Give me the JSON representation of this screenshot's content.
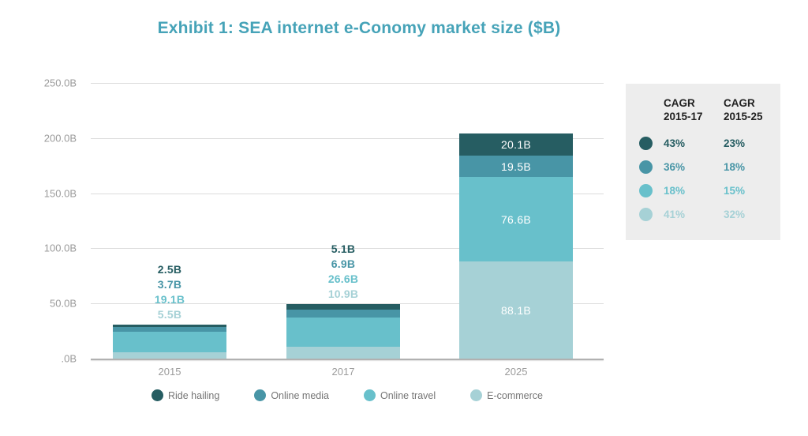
{
  "chart_data": {
    "type": "bar",
    "stacked": true,
    "title": "Exhibit 1: SEA internet e-Conomy market size ($B)",
    "xlabel": "",
    "ylabel": "",
    "ylim": [
      0,
      250
    ],
    "grid": true,
    "legend_position": "bottom",
    "categories": [
      "2015",
      "2017",
      "2025"
    ],
    "y_ticks": [
      "250.0B",
      "200.0B",
      "150.0B",
      "100.0B",
      "50.0B",
      ".0B"
    ],
    "series": [
      {
        "name": "Ride hailing",
        "color": "#265d62",
        "values": [
          2.5,
          5.1,
          20.1
        ]
      },
      {
        "name": "Online media",
        "color": "#4895a6",
        "values": [
          3.7,
          6.9,
          19.5
        ]
      },
      {
        "name": "Online travel",
        "color": "#68c0cb",
        "values": [
          19.1,
          26.6,
          76.6
        ]
      },
      {
        "name": "E-commerce",
        "color": "#a6d1d6",
        "values": [
          5.5,
          10.9,
          88.1
        ]
      }
    ],
    "value_label_suffix": "B",
    "outside_label_categories": [
      "2015",
      "2017"
    ],
    "inside_label_categories": [
      "2025"
    ]
  },
  "cagr_table": {
    "headers": [
      {
        "line1": "CAGR",
        "line2": "2015-17"
      },
      {
        "line1": "CAGR",
        "line2": "2015-25"
      }
    ],
    "rows": [
      {
        "series": "Ride hailing",
        "color": "#265d62",
        "cagr_2015_17": "43%",
        "cagr_2015_25": "23%"
      },
      {
        "series": "Online media",
        "color": "#4895a6",
        "cagr_2015_17": "36%",
        "cagr_2015_25": "18%"
      },
      {
        "series": "Online travel",
        "color": "#68c0cb",
        "cagr_2015_17": "18%",
        "cagr_2015_25": "15%"
      },
      {
        "series": "E-commerce",
        "color": "#a6d1d6",
        "cagr_2015_17": "41%",
        "cagr_2015_25": "32%"
      }
    ]
  },
  "style_colors": {
    "title": "#46a3b8",
    "axis_text": "#9b9b9b",
    "gridline": "#dcdcdc",
    "axis_line": "#b1b1b1",
    "cagr_box_bg": "#ededed",
    "legend_text": "#757575"
  }
}
